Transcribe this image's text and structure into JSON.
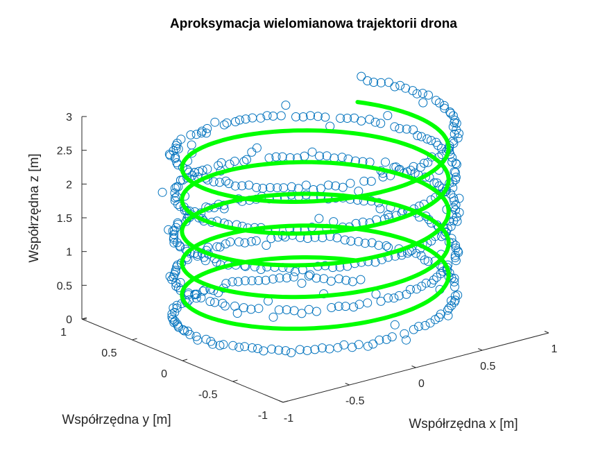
{
  "chart_data": {
    "type": "scatter",
    "title": "Aproksymacja wielomianowa trajektorii drona",
    "xlabel": "Współrzędna x [m]",
    "ylabel": "Współrzędna y [m]",
    "zlabel": "Współrzędna z [m]",
    "xlim": [
      -1,
      1
    ],
    "ylim": [
      -1,
      1
    ],
    "zlim": [
      0,
      3
    ],
    "x_ticks": [
      -1,
      -0.5,
      0,
      0.5,
      1
    ],
    "x_tick_labels": [
      "-1",
      "-0.5",
      "0",
      "0.5",
      "1"
    ],
    "y_ticks": [
      -1,
      -0.5,
      0,
      0.5,
      1
    ],
    "y_tick_labels": [
      "-1",
      "-0.5",
      "0",
      "0.5",
      "1"
    ],
    "z_ticks": [
      0,
      0.5,
      1,
      1.5,
      2,
      2.5,
      3
    ],
    "z_tick_labels": [
      "0",
      "0.5",
      "1",
      "1.5",
      "2",
      "2.5",
      "3"
    ],
    "grid": false,
    "view": "3d",
    "series": [
      {
        "kind": "scatter",
        "marker": "open-circle",
        "color": "#0072BD",
        "description_shape": "noisy helix",
        "turns": 5,
        "radius": 0.85,
        "z_range": [
          0,
          3
        ],
        "n_points": 600
      },
      {
        "kind": "line",
        "color": "#00FF00",
        "description_shape": "polynomial-fit helix",
        "turns": 5,
        "radius": 0.8,
        "z_range": [
          0.35,
          2.7
        ]
      }
    ]
  }
}
